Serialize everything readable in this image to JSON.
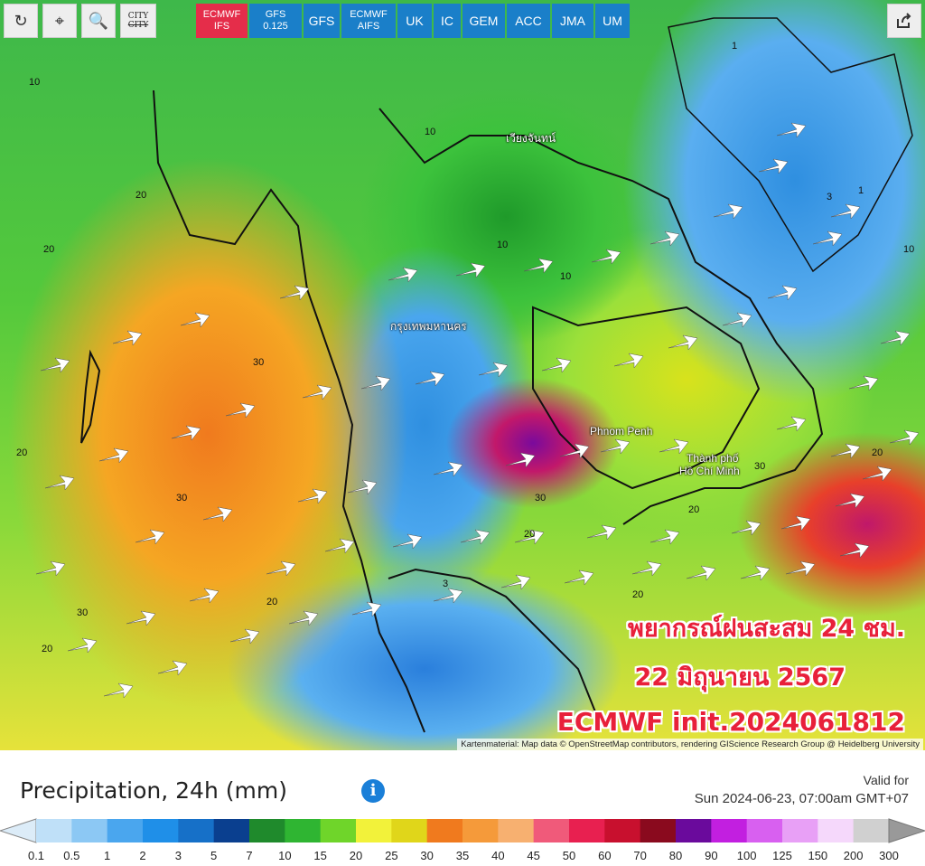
{
  "toolbar": {
    "tools": [
      {
        "name": "refresh-icon"
      },
      {
        "name": "location-pin-icon"
      },
      {
        "name": "zoom-out-icon"
      }
    ],
    "city_button": {
      "line1": "CITY",
      "line2": "CITY"
    },
    "models": [
      {
        "line1": "ECMWF",
        "line2": "IFS",
        "active": true
      },
      {
        "line1": "GFS",
        "line2": "0.125",
        "active": false
      },
      {
        "line1": "GFS",
        "line2": "",
        "active": false
      },
      {
        "line1": "ECMWF",
        "line2": "AIFS",
        "active": false
      },
      {
        "line1": "UK",
        "line2": "",
        "active": false
      },
      {
        "line1": "IC",
        "line2": "",
        "active": false
      },
      {
        "line1": "GEM",
        "line2": "",
        "active": false
      },
      {
        "line1": "ACC",
        "line2": "",
        "active": false
      },
      {
        "line1": "JMA",
        "line2": "",
        "active": false
      },
      {
        "line1": "UM",
        "line2": "",
        "active": false
      }
    ],
    "share_icon": "share-icon"
  },
  "map": {
    "place_labels": [
      {
        "text": "กรุงเทพมหานคร"
      },
      {
        "text": "Phnom Penh"
      },
      {
        "text": "Thành phố"
      },
      {
        "text": "Hồ Chí Minh"
      },
      {
        "text": "เวียงจันทน์"
      }
    ],
    "contour_values": [
      "10",
      "20",
      "30",
      "20",
      "10",
      "3",
      "1",
      "20",
      "30",
      "20",
      "10",
      "20",
      "30",
      "20",
      "10",
      "3",
      "1",
      "20",
      "30",
      "20",
      "10",
      "20",
      "30"
    ],
    "overlay": {
      "line1": "พยากรณ์ฝนสะสม 24 ชม.",
      "line2": "22 มิถุนายน 2567",
      "line3": "ECMWF init.2024061812"
    },
    "attribution": "Kartenmaterial: Map data © OpenStreetMap contributors, rendering GIScience Research Group @ Heidelberg University"
  },
  "legend": {
    "title": "Precipitation, 24h (mm)",
    "info_icon": "info-icon",
    "valid_label": "Valid for",
    "valid_time": "Sun 2024-06-23, 07:00am GMT+07",
    "ticks": [
      "0.1",
      "0.5",
      "1",
      "2",
      "3",
      "5",
      "7",
      "10",
      "15",
      "20",
      "25",
      "30",
      "35",
      "40",
      "45",
      "50",
      "60",
      "70",
      "80",
      "90",
      "100",
      "125",
      "150",
      "200",
      "300"
    ],
    "colors": [
      "#bfe0f8",
      "#8cc8f4",
      "#4aa6ee",
      "#1f8fe8",
      "#1670c8",
      "#0a3f8f",
      "#1f8a2c",
      "#2fb532",
      "#6fd52a",
      "#f2f23a",
      "#e0d61a",
      "#f07a1e",
      "#f59a3a",
      "#f7b070",
      "#f05a7a",
      "#e82050",
      "#c8102e",
      "#8a0a1e",
      "#6a0a9c",
      "#c21fe0",
      "#d860f0",
      "#e8a0f6",
      "#f5d8fb",
      "#d0d0d0"
    ]
  }
}
